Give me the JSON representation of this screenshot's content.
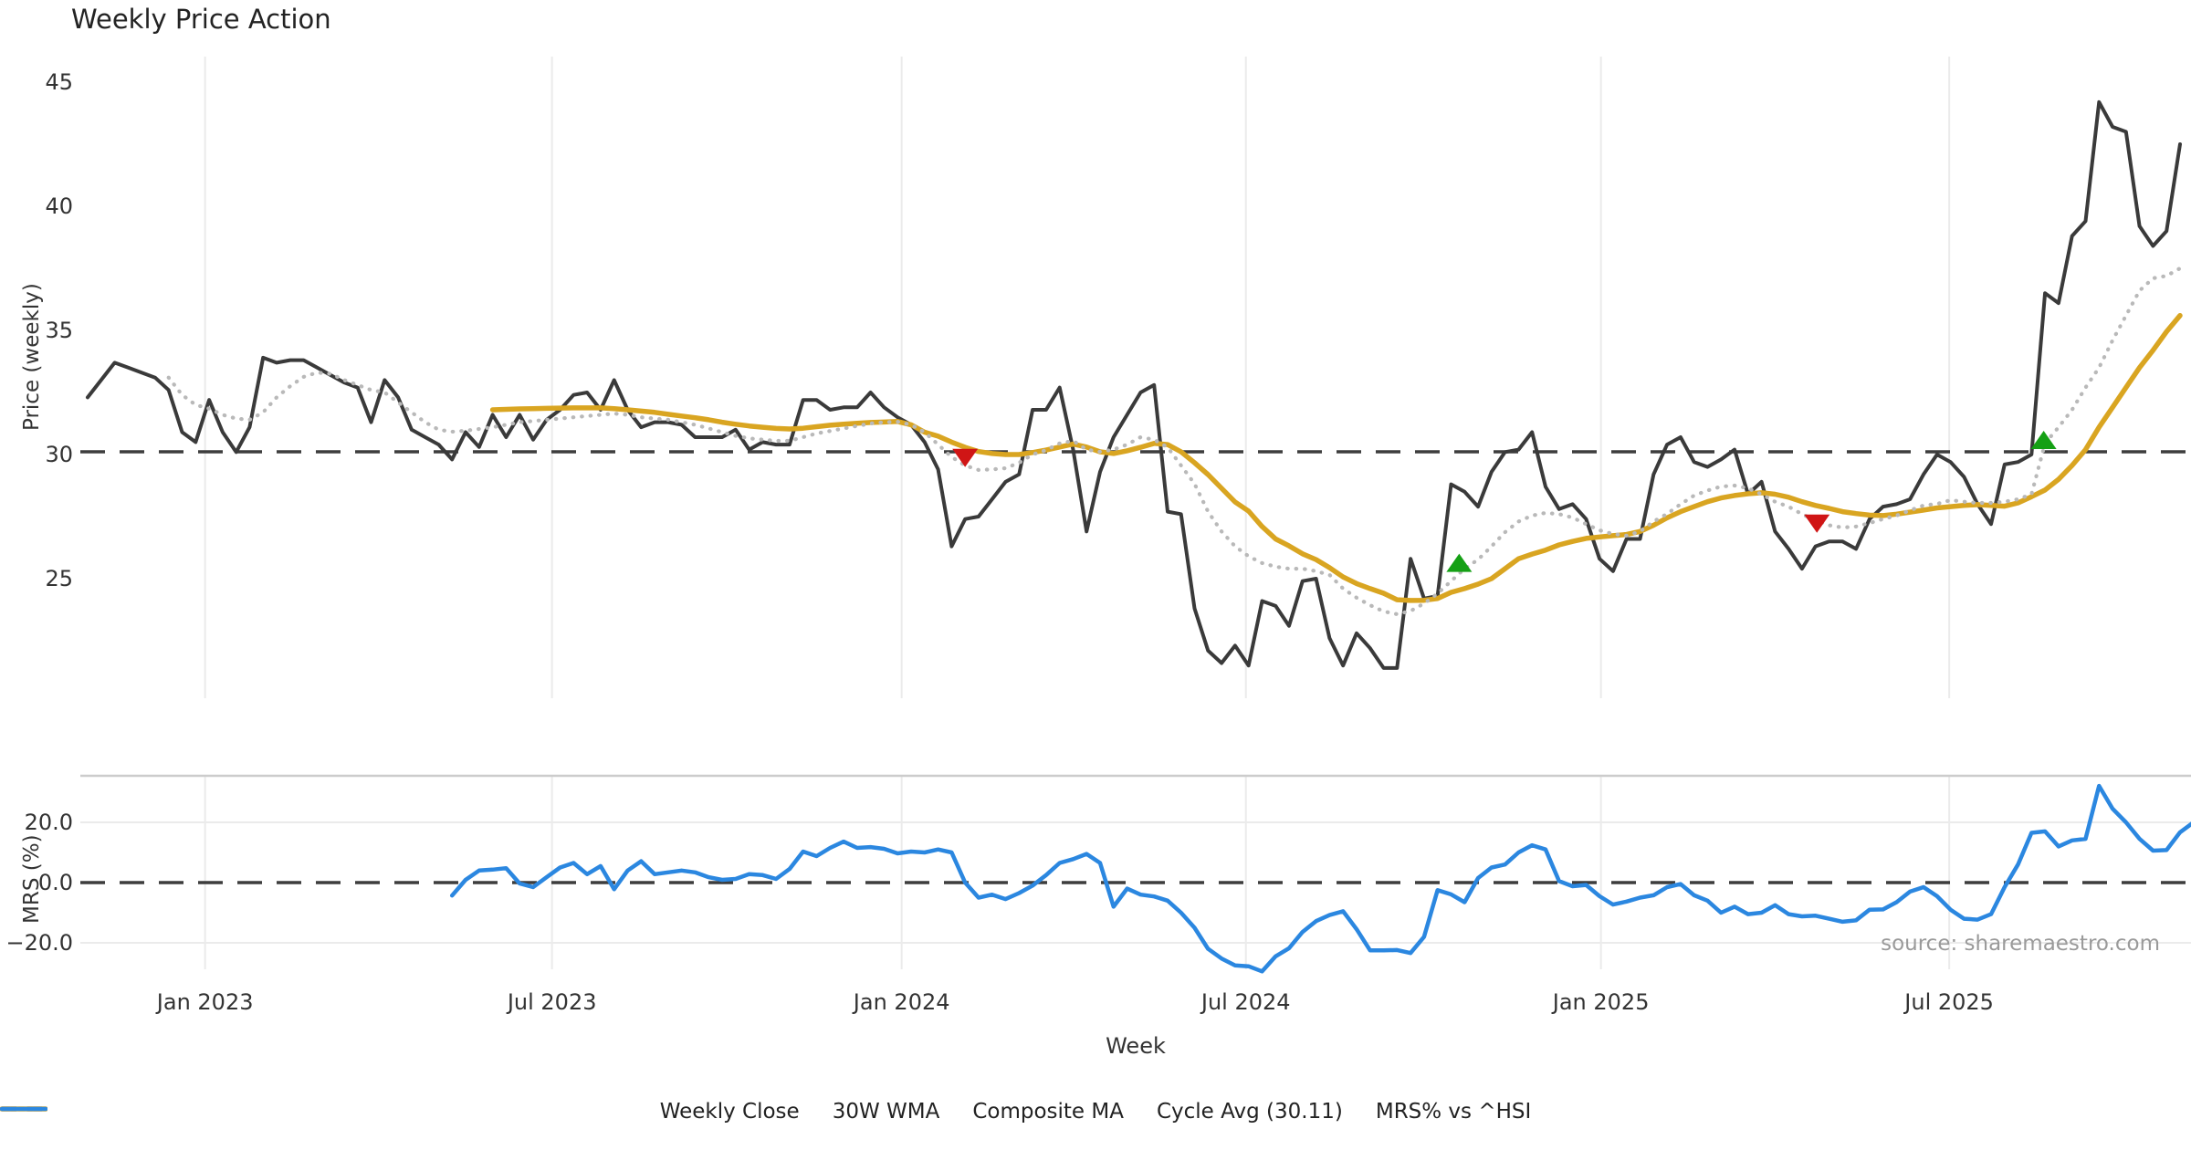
{
  "title": "Weekly Price Action",
  "source_note": "source: sharemaestro.com",
  "xlabel": "Week",
  "colors": {
    "grid": "#ebebeb",
    "panel_border": "#cccccc",
    "tick_label": "#333333",
    "title": "#232323",
    "source": "#9a9a9a",
    "buy_marker": "#15a015",
    "sell_marker": "#d01515",
    "weekly_close": "#3a3a3a",
    "wma": "#d9a521",
    "composite": "#b9b9b9",
    "cycle_avg": "#3d3d3d",
    "mrs": "#2b87e0"
  },
  "chart_data": {
    "type": "line",
    "x_unit": "week_index",
    "x_ticks": [
      {
        "week": 8.7,
        "label": "Jan 2023"
      },
      {
        "week": 34.4,
        "label": "Jul 2023"
      },
      {
        "week": 60.3,
        "label": "Jan 2024"
      },
      {
        "week": 85.8,
        "label": "Jul 2024"
      },
      {
        "week": 112.1,
        "label": "Jan 2025"
      },
      {
        "week": 137.9,
        "label": "Jul 2025"
      }
    ],
    "panels": [
      {
        "name": "price",
        "ylabel": "Price (weekly)",
        "yticks": [
          {
            "v": 45,
            "label": "45"
          },
          {
            "v": 40,
            "label": "40"
          },
          {
            "v": 35,
            "label": "35"
          },
          {
            "v": 30,
            "label": "30"
          },
          {
            "v": 25,
            "label": "25"
          }
        ],
        "cycle_avg": 30.11
      },
      {
        "name": "mrs",
        "ylabel": "MRS (%)",
        "yticks": [
          {
            "v": 20,
            "label": "20.0"
          },
          {
            "v": 0,
            "label": "0.0"
          },
          {
            "v": -20,
            "label": "−20.0"
          }
        ],
        "zero_line": 0
      }
    ],
    "series": [
      {
        "name": "Weekly Close",
        "panel": 0,
        "style": "solid",
        "width": 4,
        "color_key": "weekly_close",
        "start_week": 0,
        "values": [
          32.3,
          33.0,
          33.7,
          33.5,
          33.3,
          33.1,
          32.6,
          30.9,
          30.5,
          32.2,
          30.9,
          30.1,
          31.1,
          33.9,
          33.7,
          33.8,
          33.8,
          33.5,
          33.2,
          32.9,
          32.7,
          31.3,
          33.0,
          32.3,
          31.0,
          30.7,
          30.4,
          29.8,
          30.9,
          30.3,
          31.6,
          30.7,
          31.6,
          30.6,
          31.4,
          31.8,
          32.4,
          32.5,
          31.8,
          33.0,
          31.8,
          31.1,
          31.3,
          31.3,
          31.2,
          30.7,
          30.7,
          30.7,
          31.0,
          30.2,
          30.5,
          30.4,
          30.4,
          32.2,
          32.2,
          31.8,
          31.9,
          31.9,
          32.5,
          31.9,
          31.5,
          31.2,
          30.5,
          29.4,
          26.3,
          27.4,
          27.5,
          28.2,
          28.9,
          29.2,
          31.8,
          31.8,
          32.7,
          30.2,
          26.9,
          29.3,
          30.7,
          31.6,
          32.5,
          32.8,
          27.7,
          27.6,
          23.8,
          22.1,
          21.6,
          22.3,
          21.5,
          24.1,
          23.9,
          23.1,
          24.9,
          25.0,
          22.6,
          21.5,
          22.8,
          22.2,
          21.4,
          21.4,
          25.8,
          24.2,
          24.3,
          28.8,
          28.5,
          27.9,
          29.3,
          30.1,
          30.2,
          30.9,
          28.7,
          27.8,
          28.0,
          27.4,
          25.8,
          25.3,
          26.6,
          26.6,
          29.2,
          30.4,
          30.7,
          29.7,
          29.5,
          29.8,
          30.2,
          28.4,
          28.9,
          26.9,
          26.2,
          25.4,
          26.3,
          26.5,
          26.5,
          26.2,
          27.4,
          27.9,
          28.0,
          28.2,
          29.2,
          30.0,
          29.7,
          29.1,
          28.0,
          27.2,
          29.6,
          29.7,
          30.0,
          36.5,
          36.1,
          38.8,
          39.4,
          44.2,
          43.2,
          43.0,
          39.2,
          38.4,
          39.0,
          42.5
        ]
      },
      {
        "name": "30W WMA",
        "panel": 0,
        "style": "solid",
        "width": 5.5,
        "color_key": "wma",
        "start_week": 30,
        "values": [
          31.8,
          31.82,
          31.84,
          31.85,
          31.86,
          31.87,
          31.88,
          31.88,
          31.88,
          31.85,
          31.8,
          31.75,
          31.7,
          31.62,
          31.55,
          31.48,
          31.4,
          31.3,
          31.22,
          31.15,
          31.1,
          31.05,
          31.03,
          31.06,
          31.12,
          31.18,
          31.22,
          31.26,
          31.29,
          31.31,
          31.33,
          31.2,
          30.9,
          30.74,
          30.5,
          30.29,
          30.12,
          30.04,
          30.0,
          30.0,
          30.08,
          30.18,
          30.3,
          30.42,
          30.3,
          30.11,
          30.04,
          30.15,
          30.29,
          30.45,
          30.4,
          30.11,
          29.67,
          29.19,
          28.64,
          28.09,
          27.72,
          27.1,
          26.6,
          26.32,
          26.0,
          25.77,
          25.44,
          25.07,
          24.8,
          24.6,
          24.41,
          24.15,
          24.12,
          24.13,
          24.2,
          24.45,
          24.6,
          24.78,
          25.0,
          25.4,
          25.8,
          25.99,
          26.15,
          26.36,
          26.5,
          26.62,
          26.68,
          26.73,
          26.78,
          26.9,
          27.15,
          27.45,
          27.7,
          27.9,
          28.1,
          28.25,
          28.35,
          28.42,
          28.46,
          28.4,
          28.28,
          28.1,
          27.95,
          27.83,
          27.7,
          27.62,
          27.56,
          27.54,
          27.6,
          27.68,
          27.76,
          27.85,
          27.9,
          27.95,
          27.98,
          27.95,
          27.92,
          28.05,
          28.3,
          28.57,
          29.0,
          29.56,
          30.2,
          31.1,
          31.9,
          32.7,
          33.5,
          34.2,
          34.95,
          35.6
        ]
      },
      {
        "name": "Composite MA",
        "panel": 0,
        "style": "dotted",
        "width": 4.2,
        "color_key": "composite",
        "start_week": 6,
        "values": [
          33.1,
          32.4,
          32.0,
          31.85,
          31.6,
          31.45,
          31.4,
          31.7,
          32.3,
          32.75,
          33.13,
          33.3,
          33.25,
          33.0,
          32.8,
          32.6,
          32.5,
          32.1,
          31.7,
          31.3,
          31.0,
          30.92,
          30.96,
          31.03,
          31.1,
          31.2,
          31.3,
          31.35,
          31.4,
          31.45,
          31.5,
          31.55,
          31.6,
          31.65,
          31.6,
          31.5,
          31.45,
          31.4,
          31.3,
          31.2,
          31.05,
          30.9,
          30.75,
          30.65,
          30.6,
          30.55,
          30.55,
          30.7,
          30.85,
          30.95,
          31.05,
          31.15,
          31.25,
          31.3,
          31.32,
          31.2,
          30.9,
          30.4,
          29.9,
          29.56,
          29.38,
          29.4,
          29.45,
          29.67,
          30.0,
          30.18,
          30.45,
          30.55,
          30.2,
          30.11,
          30.2,
          30.4,
          30.7,
          30.6,
          30.29,
          29.56,
          28.82,
          27.7,
          26.9,
          26.3,
          25.9,
          25.63,
          25.48,
          25.4,
          25.4,
          25.3,
          25.15,
          24.6,
          24.23,
          23.93,
          23.68,
          23.57,
          23.7,
          24.0,
          24.4,
          24.9,
          25.4,
          25.77,
          26.3,
          26.87,
          27.3,
          27.54,
          27.65,
          27.6,
          27.46,
          27.2,
          26.95,
          26.8,
          26.73,
          26.9,
          27.3,
          27.61,
          28.0,
          28.35,
          28.55,
          28.71,
          28.75,
          28.64,
          28.4,
          28.1,
          27.9,
          27.6,
          27.35,
          27.15,
          27.06,
          27.1,
          27.24,
          27.4,
          27.54,
          27.75,
          27.95,
          28.01,
          28.16,
          28.1,
          28.05,
          28.05,
          28.1,
          28.2,
          28.4,
          30.45,
          31.1,
          31.8,
          32.7,
          33.5,
          34.6,
          35.6,
          36.6,
          37.1,
          37.2,
          37.5
        ]
      },
      {
        "name": "Cycle Avg (30.11)",
        "panel": 0,
        "style": "dashed",
        "width": 3.5,
        "color_key": "cycle_avg",
        "hline": 30.11
      },
      {
        "name": "MRS% vs ^HSI",
        "panel": 1,
        "style": "solid",
        "width": 4.5,
        "color_key": "mrs",
        "start_week": 27,
        "values": [
          -4.3,
          0.9,
          4.0,
          4.3,
          4.8,
          -0.3,
          -1.5,
          1.8,
          5.0,
          6.5,
          2.8,
          5.5,
          -2.2,
          4.0,
          7.1,
          2.8,
          3.4,
          4.0,
          3.4,
          1.8,
          0.9,
          1.2,
          2.8,
          2.5,
          1.2,
          4.5,
          10.3,
          8.8,
          11.5,
          13.6,
          11.5,
          11.8,
          11.2,
          9.7,
          10.3,
          10.0,
          11.0,
          10.0,
          0.0,
          -5.0,
          -4.0,
          -5.5,
          -3.5,
          -1.0,
          2.5,
          6.5,
          7.8,
          9.5,
          6.5,
          -8.0,
          -2.0,
          -4.0,
          -4.6,
          -6.0,
          -10.0,
          -15.0,
          -22.0,
          -25.2,
          -27.5,
          -27.8,
          -29.5,
          -24.5,
          -21.8,
          -16.4,
          -12.8,
          -10.8,
          -9.5,
          -15.5,
          -22.5,
          -22.5,
          -22.4,
          -23.4,
          -18.0,
          -2.5,
          -3.9,
          -6.5,
          1.5,
          5.0,
          6.0,
          10.0,
          12.4,
          11.0,
          0.5,
          -1.2,
          -0.8,
          -4.5,
          -7.3,
          -6.3,
          -5.0,
          -4.2,
          -1.5,
          -0.5,
          -4.2,
          -6.0,
          -10.0,
          -8.0,
          -10.5,
          -10.0,
          -7.5,
          -10.5,
          -11.2,
          -11.0,
          -12.0,
          -13.0,
          -12.5,
          -9.0,
          -8.9,
          -6.5,
          -3.0,
          -1.5,
          -4.5,
          -9.0,
          -12.0,
          -12.3,
          -10.5,
          -1.5,
          6.0,
          16.5,
          17.0,
          12.0,
          14.0,
          14.5,
          32.1,
          24.5,
          20.0,
          14.5,
          10.6,
          10.8,
          16.7,
          20.0
        ]
      }
    ],
    "markers": [
      {
        "type": "sell",
        "week": 65.0,
        "value": 29.9
      },
      {
        "type": "buy",
        "week": 101.6,
        "value": 25.6
      },
      {
        "type": "sell",
        "week": 128.1,
        "value": 27.25
      },
      {
        "type": "buy",
        "week": 144.9,
        "value": 30.55
      }
    ],
    "legend_position": "bottom"
  }
}
